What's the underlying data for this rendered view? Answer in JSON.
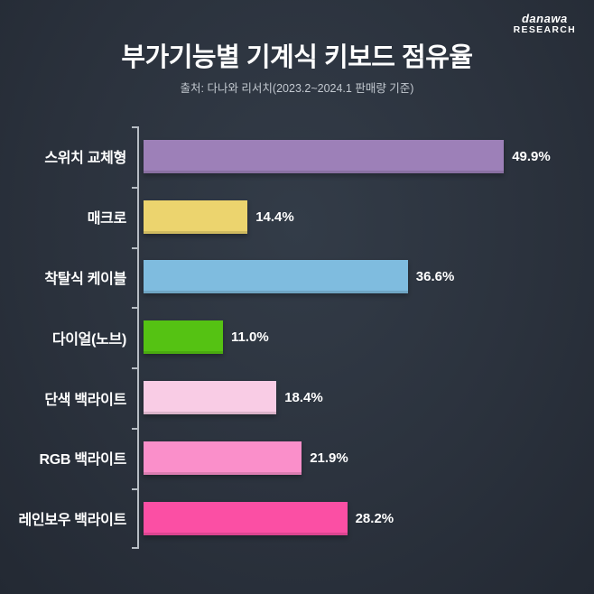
{
  "logo": {
    "line1": "danawa",
    "line2": "RESEARCH"
  },
  "header": {
    "title": "부가기능별 기계식 키보드 점유율",
    "subtitle": "출처: 다나와 리서치(2023.2~2024.1 판매량 기준)"
  },
  "chart_data": {
    "type": "bar",
    "orientation": "horizontal",
    "title": "부가기능별 기계식 키보드 점유율",
    "subtitle": "출처: 다나와 리서치(2023.2~2024.1 판매량 기준)",
    "categories": [
      "스위치 교체형",
      "매크로",
      "착탈식 케이블",
      "다이얼(노브)",
      "단색 백라이트",
      "RGB 백라이트",
      "레인보우 백라이트"
    ],
    "values": [
      49.9,
      14.4,
      36.6,
      11.0,
      18.4,
      21.9,
      28.2
    ],
    "value_labels": [
      "49.9%",
      "14.4%",
      "36.6%",
      "11.0%",
      "18.4%",
      "21.9%",
      "28.2%"
    ],
    "colors": [
      "#9d80b8",
      "#ecd46e",
      "#7fbcdf",
      "#55c213",
      "#f9cce5",
      "#fa8fca",
      "#fb4fa4"
    ],
    "xlim": [
      0,
      55
    ],
    "grid": false,
    "legend": false,
    "background_color": "#2b323d",
    "axis_color": "#b7bdc4"
  }
}
